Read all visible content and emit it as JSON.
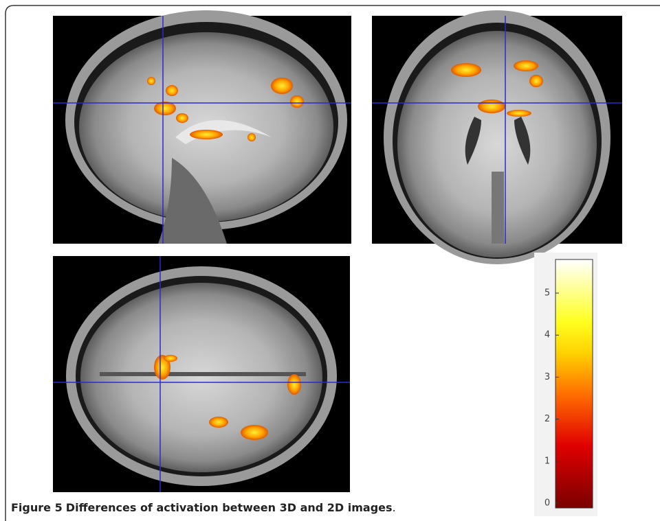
{
  "figure": {
    "label": "Figure 5",
    "caption": "Differences of activation between 3D and 2D images",
    "caption_end": ".",
    "colorbar": {
      "ticks": [
        0,
        1,
        2,
        3,
        4,
        5
      ]
    }
  }
}
